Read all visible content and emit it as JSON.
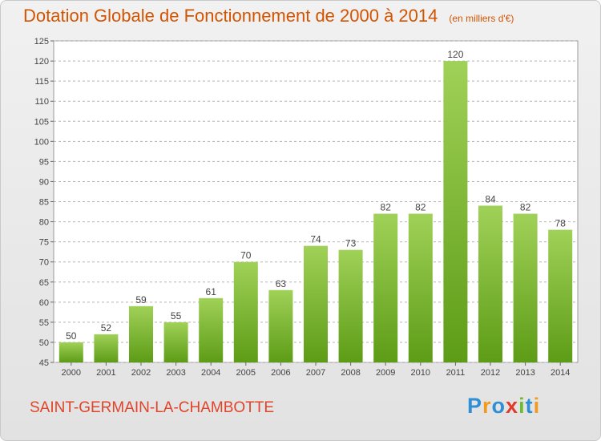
{
  "title": "Dotation Globale de Fonctionnement de 2000 à 2014",
  "unit_note": "(en milliers d'€)",
  "commune": "SAINT-GERMAIN-LA-CHAMBOTTE",
  "logo": {
    "text": "Proxiti",
    "letters": [
      "P",
      "r",
      "o",
      "x",
      "i",
      "t",
      "i"
    ],
    "colors": [
      "#2f8fd5",
      "#f29a1b",
      "#2f8fd5",
      "#e33a2a",
      "#6cbf2a",
      "#2f8fd5",
      "#f29a1b"
    ]
  },
  "colors": {
    "bar_top": "#a0d158",
    "bar_bottom": "#5d9c16",
    "title": "#d35400",
    "grid": "#b3b3b3"
  },
  "chart_data": {
    "type": "bar",
    "categories": [
      "2000",
      "2001",
      "2002",
      "2003",
      "2004",
      "2005",
      "2006",
      "2007",
      "2008",
      "2009",
      "2010",
      "2011",
      "2012",
      "2013",
      "2014"
    ],
    "values": [
      50,
      52,
      59,
      55,
      61,
      70,
      63,
      74,
      73,
      82,
      82,
      120,
      84,
      82,
      78
    ],
    "ylim": [
      45,
      125
    ],
    "yticks": [
      45,
      50,
      55,
      60,
      65,
      70,
      75,
      80,
      85,
      90,
      95,
      100,
      105,
      110,
      115,
      120,
      125
    ],
    "grid": true
  }
}
